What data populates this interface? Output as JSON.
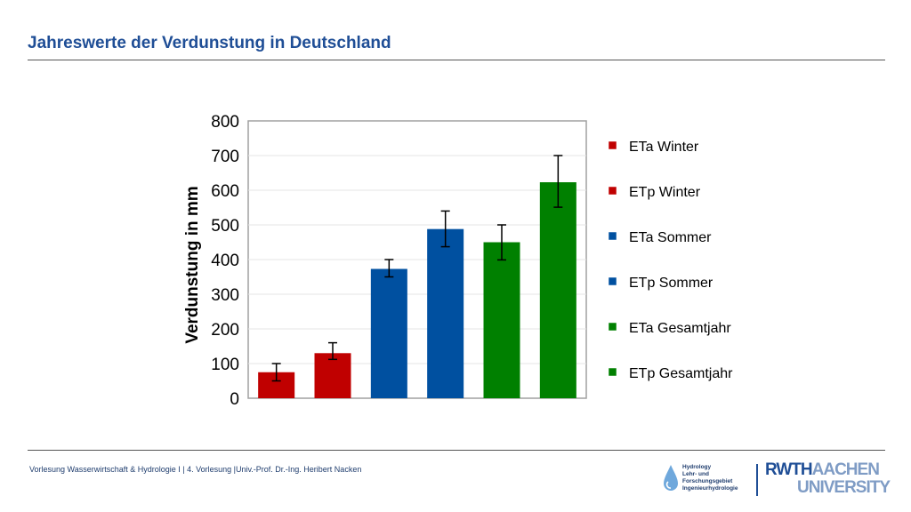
{
  "slide": {
    "title": "Jahreswerte der Verdunstung in Deutschland",
    "footer": "Vorlesung Wasserwirtschaft & Hydrologie I | 4. Vorlesung |Univ.-Prof. Dr.-Ing. Heribert Nacken"
  },
  "logos": {
    "hydro_text": "Hydrology\nLehr- und\nForschungsgebiet\nIngenieurhydrologie",
    "rwth_part1": "RWTH",
    "rwth_part2": "AACHEN",
    "rwth_line2": "UNIVERSITY"
  },
  "chart_data": {
    "type": "bar",
    "title": "",
    "xlabel": "",
    "ylabel": "Verdunstung in mm",
    "ylim": [
      0,
      800
    ],
    "yticks": [
      0,
      100,
      200,
      300,
      400,
      500,
      600,
      700,
      800
    ],
    "grid": true,
    "legend_position": "right",
    "categories": [
      "ETa Winter",
      "ETp Winter",
      "ETa Sommer",
      "ETp Sommer",
      "ETa Gesamtjahr",
      "ETp Gesamtjahr"
    ],
    "values": [
      75,
      130,
      373,
      488,
      450,
      623
    ],
    "error_low": [
      50,
      112,
      350,
      437,
      399,
      551
    ],
    "error_high": [
      100,
      160,
      400,
      540,
      500,
      700
    ],
    "colors": [
      "#c00000",
      "#c00000",
      "#0050a0",
      "#0050a0",
      "#008000",
      "#008000"
    ]
  }
}
